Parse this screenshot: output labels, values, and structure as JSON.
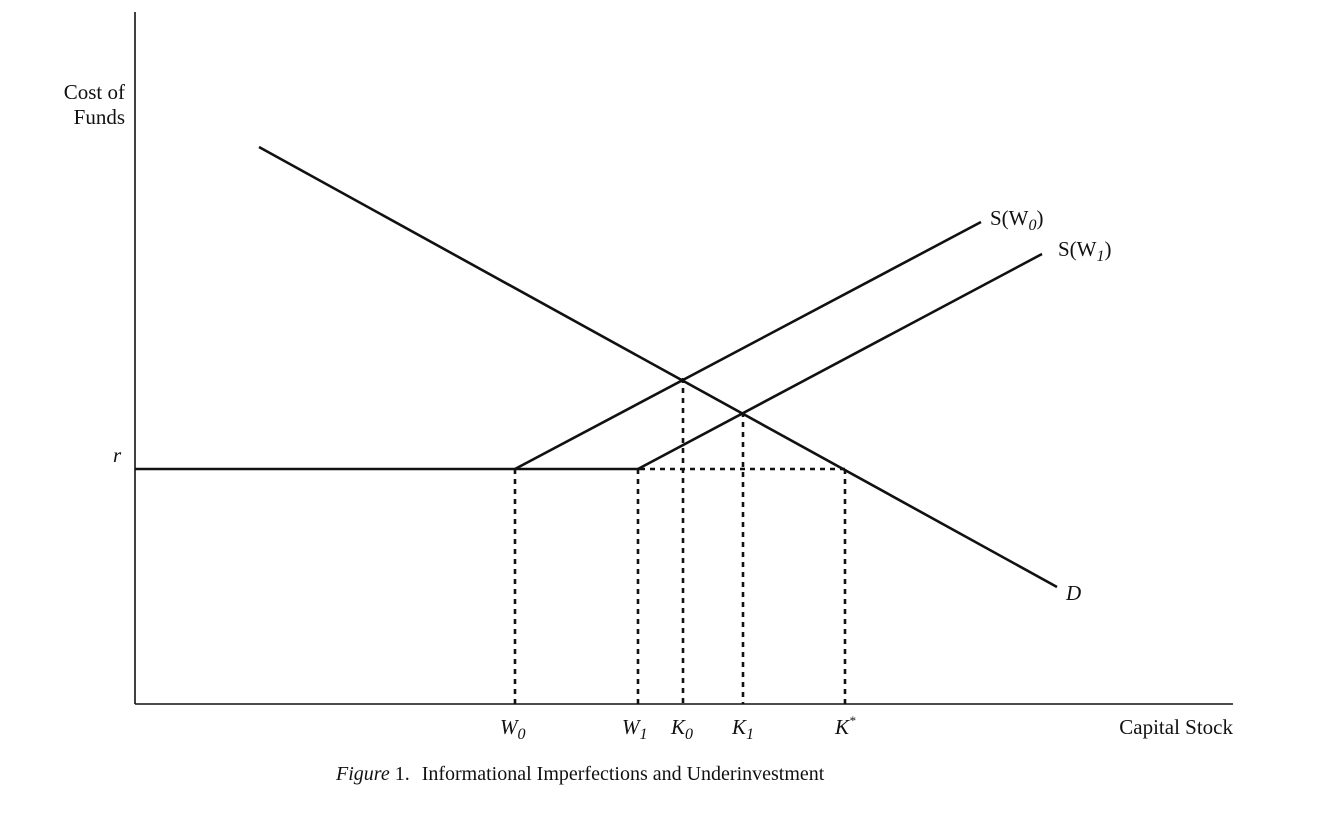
{
  "diagram": {
    "y_axis_label_line1": "Cost of",
    "y_axis_label_line2": "Funds",
    "x_axis_label": "Capital Stock",
    "r_label": "r",
    "demand_label": "D",
    "supply0_label_prefix": "S(W",
    "supply0_label_sub": "0",
    "supply1_label_prefix": "S(W",
    "supply1_label_sub": "1",
    "label_close_paren": ")",
    "x_ticks": [
      {
        "base": "W",
        "sub": "0"
      },
      {
        "base": "W",
        "sub": "1"
      },
      {
        "base": "K",
        "sub": "0"
      },
      {
        "base": "K",
        "sub": "1"
      },
      {
        "base": "K",
        "sup": "*"
      }
    ]
  },
  "caption": {
    "figure_word": "Figure",
    "figure_number": " 1.",
    "text": "Informational Imperfections and Underinvestment"
  }
}
